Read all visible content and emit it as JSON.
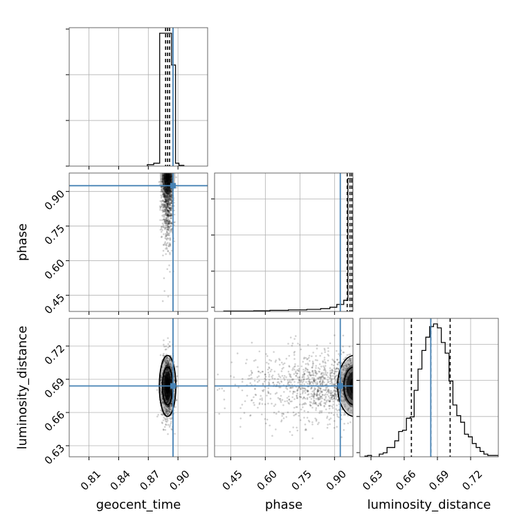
{
  "chart_data": {
    "type": "corner",
    "parameters": [
      "geocent_time",
      "phase",
      "luminosity_distance"
    ],
    "truth_color": "#4682b4",
    "grid": true,
    "labels": {
      "geocent_time": "geocent_time",
      "phase": "phase",
      "luminosity_distance": "luminosity_distance"
    },
    "ticks": {
      "geocent_time": [
        "0.81",
        "0.84",
        "0.87",
        "0.90"
      ],
      "phase": [
        "0.45",
        "0.60",
        "0.75",
        "0.90"
      ],
      "luminosity_distance": [
        "0.63",
        "0.66",
        "0.69",
        "0.72"
      ]
    },
    "ranges": {
      "geocent_time": [
        0.79,
        0.93
      ],
      "phase": [
        0.38,
        0.98
      ],
      "luminosity_distance": [
        0.62,
        0.745
      ]
    },
    "truths": {
      "geocent_time": 0.895,
      "phase": 0.925,
      "luminosity_distance": 0.684
    },
    "quantiles": {
      "geocent_time": [
        0.8875,
        0.8895,
        0.8915
      ],
      "phase": [
        0.955,
        0.967,
        0.975
      ],
      "luminosity_distance": [
        0.6665,
        0.684,
        0.7015
      ]
    },
    "histograms": [
      {
        "param": "geocent_time",
        "edges": [
          0.869,
          0.8755,
          0.8815,
          0.8875,
          0.8935,
          0.8975,
          0.901,
          0.906
        ],
        "counts": [
          0.01,
          0.02,
          0.92,
          0.92,
          0.7,
          0.02,
          0.005
        ]
      },
      {
        "param": "phase",
        "edges": [
          0.42,
          0.55,
          0.62,
          0.7,
          0.78,
          0.84,
          0.88,
          0.91,
          0.94,
          0.958,
          0.98
        ],
        "counts": [
          0.003,
          0.005,
          0.008,
          0.011,
          0.015,
          0.02,
          0.03,
          0.05,
          0.08,
          0.95
        ]
      },
      {
        "param": "luminosity_distance",
        "edges": [
          0.6245,
          0.627,
          0.6305,
          0.634,
          0.6375,
          0.641,
          0.6445,
          0.648,
          0.6515,
          0.655,
          0.6585,
          0.662,
          0.6655,
          0.669,
          0.6725,
          0.676,
          0.6795,
          0.683,
          0.6865,
          0.69,
          0.6935,
          0.697,
          0.7005,
          0.704,
          0.7075,
          0.711,
          0.7145,
          0.718,
          0.7215,
          0.725,
          0.7285,
          0.732,
          0.7355,
          0.745
        ],
        "counts": [
          0.005,
          0.01,
          0.0,
          0.0,
          0.02,
          0.03,
          0.07,
          0.07,
          0.12,
          0.19,
          0.2,
          0.29,
          0.3,
          0.5,
          0.66,
          0.8,
          0.9,
          0.98,
          1.0,
          0.97,
          0.86,
          0.78,
          0.57,
          0.39,
          0.31,
          0.26,
          0.17,
          0.15,
          0.1,
          0.07,
          0.04,
          0.02,
          0.01
        ]
      }
    ],
    "panels_2d": [
      {
        "x": "geocent_time",
        "y": "phase",
        "x_center": 0.8895,
        "x_spread": 0.003,
        "y_center": 0.97,
        "y_spread": 0.13,
        "points": 900
      },
      {
        "x": "geocent_time",
        "y": "luminosity_distance",
        "x_center": 0.8895,
        "x_spread": 0.0035,
        "y_center": 0.684,
        "y_spread": 0.015,
        "points": 900
      },
      {
        "x": "phase",
        "y": "luminosity_distance",
        "x_center": 0.975,
        "x_spread": 0.13,
        "y_center": 0.684,
        "y_spread": 0.015,
        "points": 1100
      }
    ]
  }
}
